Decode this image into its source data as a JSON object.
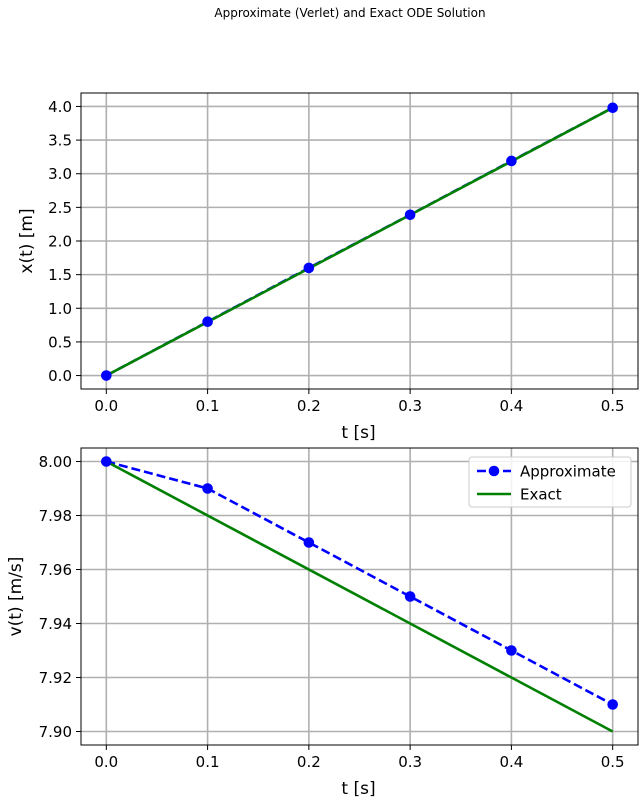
{
  "figure": {
    "suptitle": "Approximate (Verlet) and Exact ODE Solution"
  },
  "colors": {
    "approximate": "#0000ff",
    "exact": "#008000",
    "grid": "#b0b0b0"
  },
  "chart_data": [
    {
      "type": "line",
      "title": "",
      "xlabel": "t [s]",
      "ylabel": "x(t) [m]",
      "xlim": [
        -0.025,
        0.525
      ],
      "ylim": [
        -0.2,
        4.2
      ],
      "xticks": [
        0.0,
        0.1,
        0.2,
        0.3,
        0.4,
        0.5
      ],
      "yticks": [
        0.0,
        0.5,
        1.0,
        1.5,
        2.0,
        2.5,
        3.0,
        3.5,
        4.0
      ],
      "xtick_labels": [
        "0.0",
        "0.1",
        "0.2",
        "0.3",
        "0.4",
        "0.5"
      ],
      "ytick_labels": [
        "0.0",
        "0.5",
        "1.0",
        "1.5",
        "2.0",
        "2.5",
        "3.0",
        "3.5",
        "4.0"
      ],
      "grid": true,
      "legend": null,
      "series": [
        {
          "key": "approximate",
          "style": "dashed-markers",
          "x": [
            0.0,
            0.1,
            0.2,
            0.3,
            0.4,
            0.5
          ],
          "y": [
            0.0,
            0.8,
            1.6,
            2.39,
            3.19,
            3.98
          ]
        },
        {
          "key": "exact",
          "style": "solid",
          "x": [
            0.0,
            0.5
          ],
          "y": [
            0.0,
            3.98
          ]
        }
      ]
    },
    {
      "type": "line",
      "title": "",
      "xlabel": "t [s]",
      "ylabel": "v(t) [m/s]",
      "xlim": [
        -0.025,
        0.525
      ],
      "ylim": [
        7.895,
        8.005
      ],
      "xticks": [
        0.0,
        0.1,
        0.2,
        0.3,
        0.4,
        0.5
      ],
      "yticks": [
        7.9,
        7.92,
        7.94,
        7.96,
        7.98,
        8.0
      ],
      "xtick_labels": [
        "0.0",
        "0.1",
        "0.2",
        "0.3",
        "0.4",
        "0.5"
      ],
      "ytick_labels": [
        "7.90",
        "7.92",
        "7.94",
        "7.96",
        "7.98",
        "8.00"
      ],
      "grid": true,
      "legend": {
        "placement": "top-right",
        "entries": [
          {
            "key": "approximate",
            "label": "Approximate",
            "style": "dashed-markers"
          },
          {
            "key": "exact",
            "label": "Exact",
            "style": "solid"
          }
        ]
      },
      "series": [
        {
          "key": "approximate",
          "name": "Approximate",
          "style": "dashed-markers",
          "x": [
            0.0,
            0.1,
            0.2,
            0.3,
            0.4,
            0.5
          ],
          "y": [
            8.0,
            7.99,
            7.97,
            7.95,
            7.93,
            7.91
          ]
        },
        {
          "key": "exact",
          "name": "Exact",
          "style": "solid",
          "x": [
            0.0,
            0.5
          ],
          "y": [
            8.0,
            7.9
          ]
        }
      ]
    }
  ]
}
